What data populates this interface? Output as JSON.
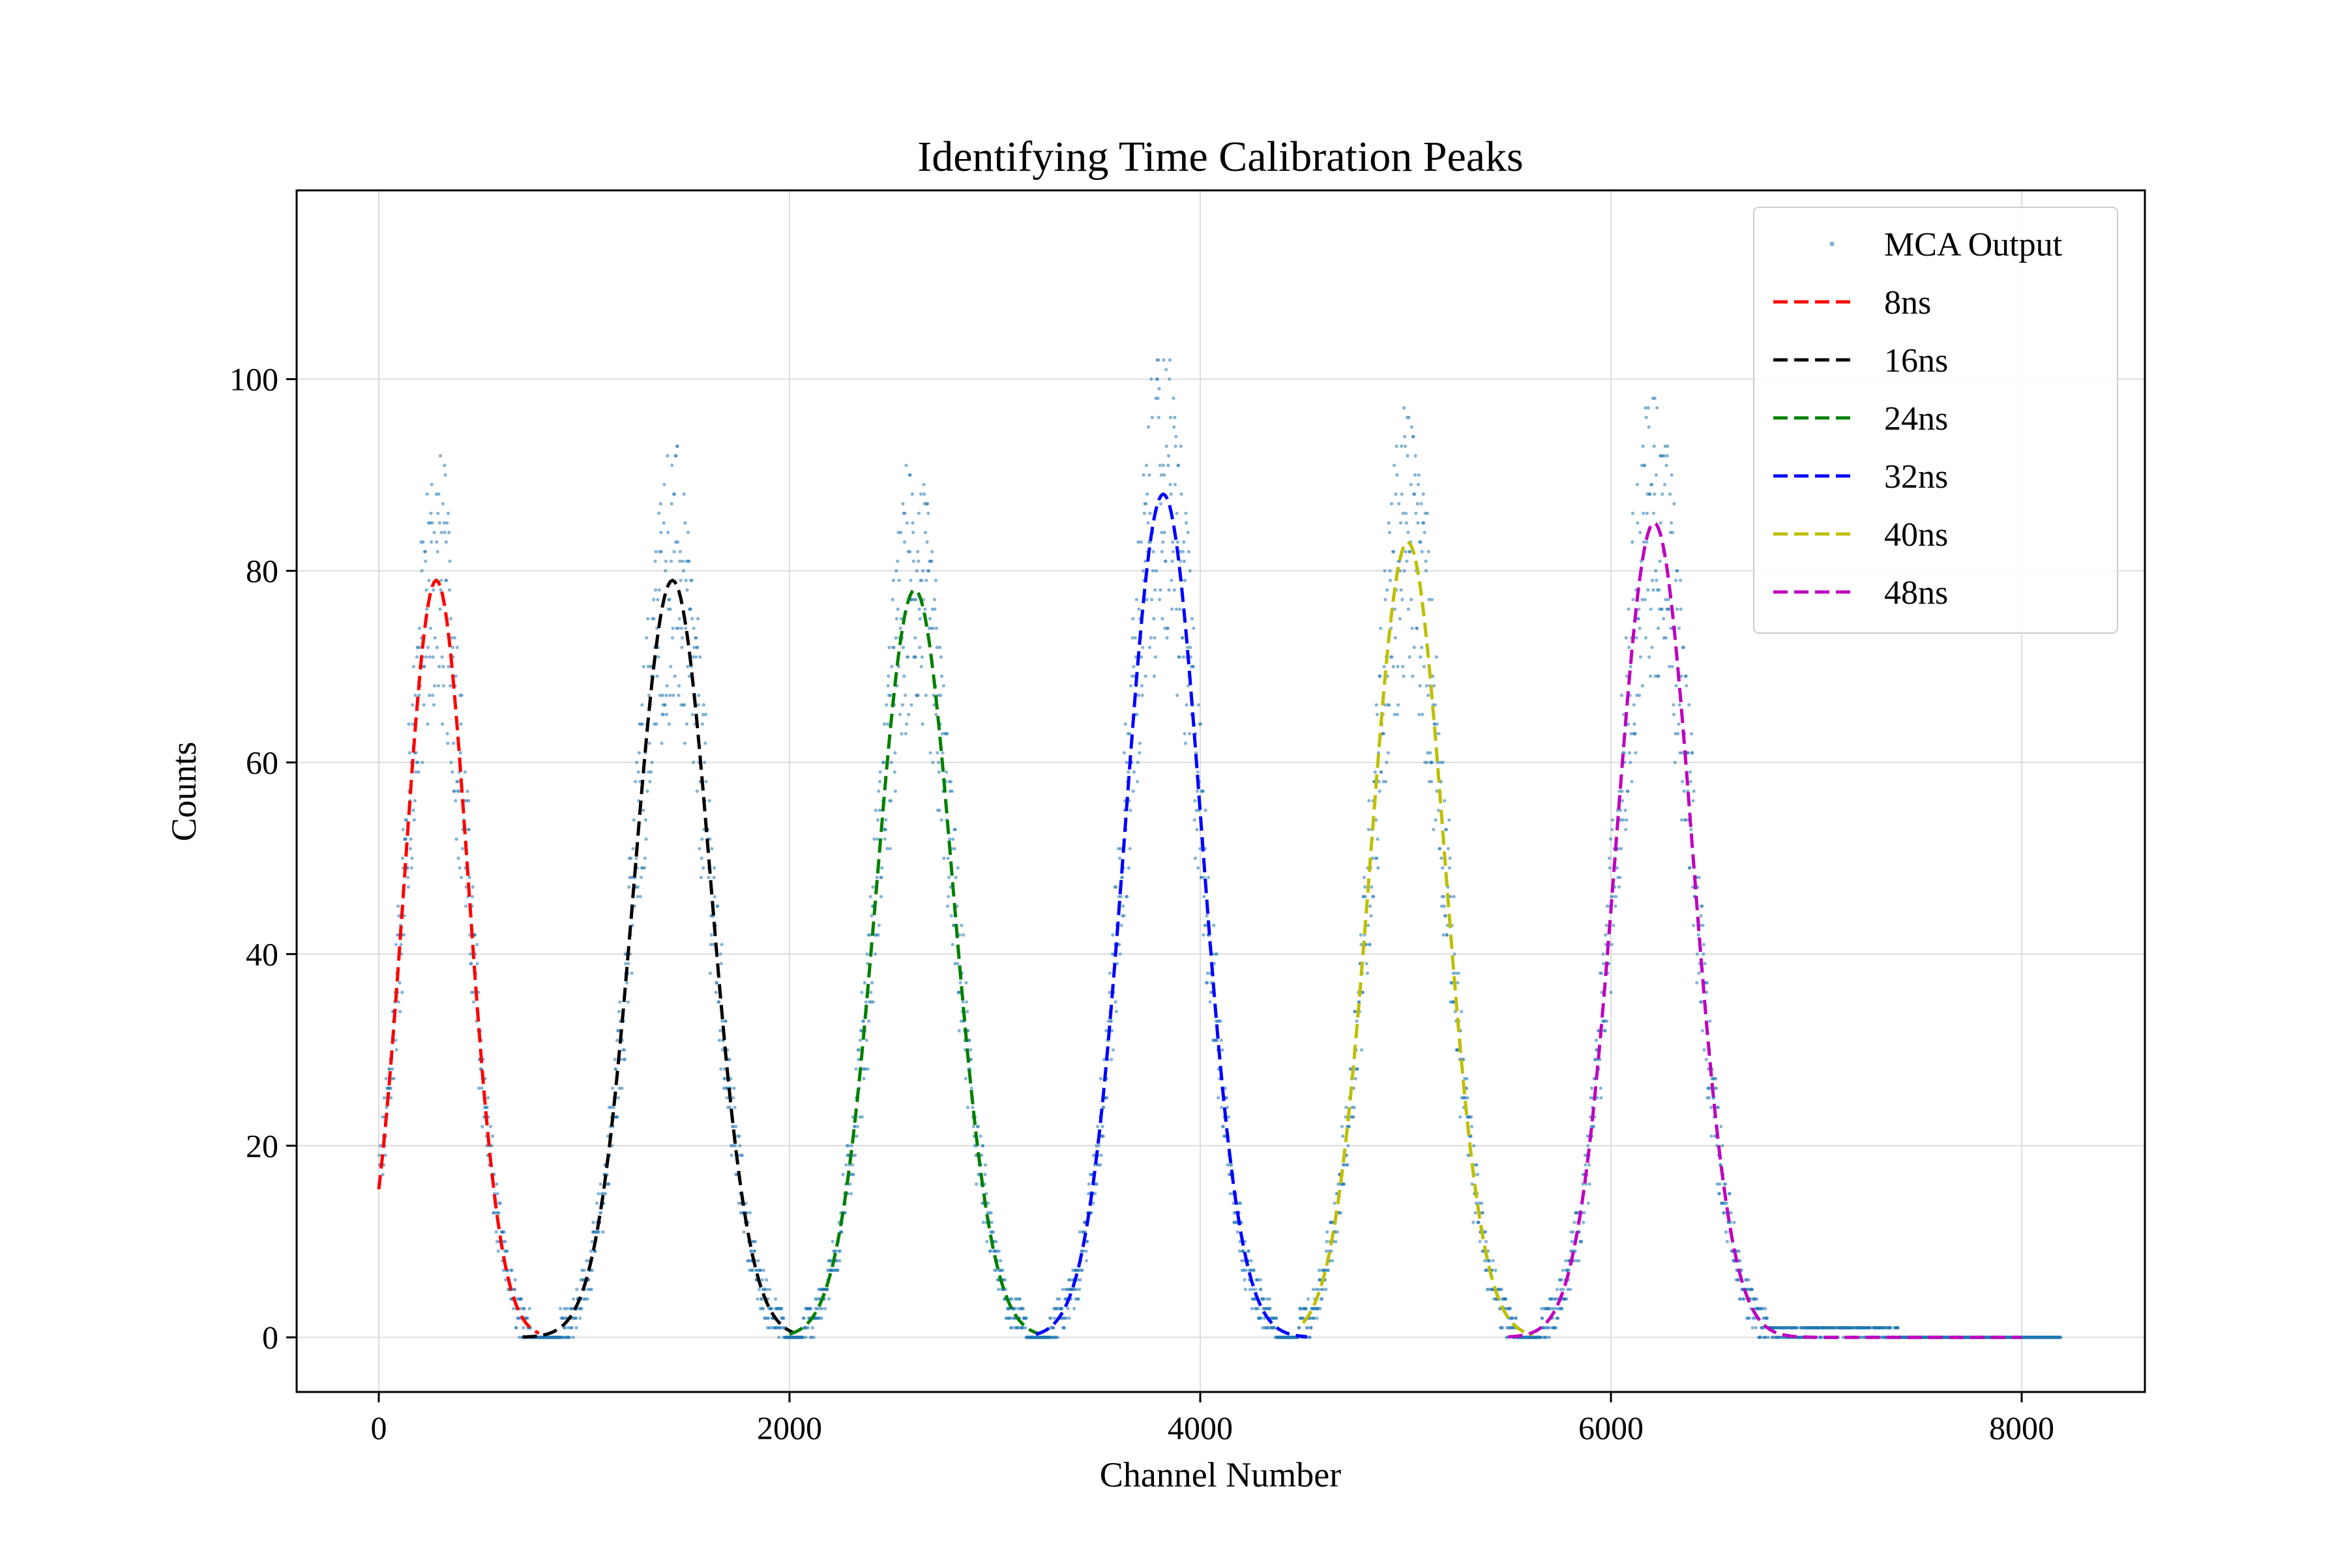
{
  "chart_data": {
    "type": "scatter",
    "title": "Identifying Time Calibration Peaks",
    "xlabel": "Channel Number",
    "ylabel": "Counts",
    "xlim": [
      -400,
      8600
    ],
    "ylim": [
      -5.7,
      119.7
    ],
    "xticks": [
      0,
      2000,
      4000,
      6000,
      8000
    ],
    "yticks": [
      0,
      20,
      40,
      60,
      80,
      100
    ],
    "grid": true,
    "legend_position": "top-right",
    "scatter": {
      "name": "MCA Output",
      "color": "#1f77b4",
      "x_range": [
        0,
        8191
      ],
      "baseline": 0
    },
    "series": [
      {
        "name": "8ns",
        "color": "#ff0000",
        "amplitude": 79,
        "center": 280,
        "sigma": 155,
        "x_range": [
          0,
          780
        ]
      },
      {
        "name": "16ns",
        "color": "#000000",
        "amplitude": 79,
        "center": 1430,
        "sigma": 185,
        "x_range": [
          700,
          2020
        ]
      },
      {
        "name": "24ns",
        "color": "#008000",
        "amplitude": 78,
        "center": 2610,
        "sigma": 185,
        "x_range": [
          2000,
          3210
        ]
      },
      {
        "name": "32ns",
        "color": "#0000ff",
        "amplitude": 88,
        "center": 3820,
        "sigma": 185,
        "x_range": [
          3200,
          4520
        ]
      },
      {
        "name": "40ns",
        "color": "#bfbf00",
        "amplitude": 83,
        "center": 5010,
        "sigma": 180,
        "x_range": [
          4500,
          5620
        ]
      },
      {
        "name": "48ns",
        "color": "#bf00bf",
        "amplitude": 85,
        "center": 6210,
        "sigma": 185,
        "x_range": [
          5500,
          8000
        ]
      }
    ]
  }
}
